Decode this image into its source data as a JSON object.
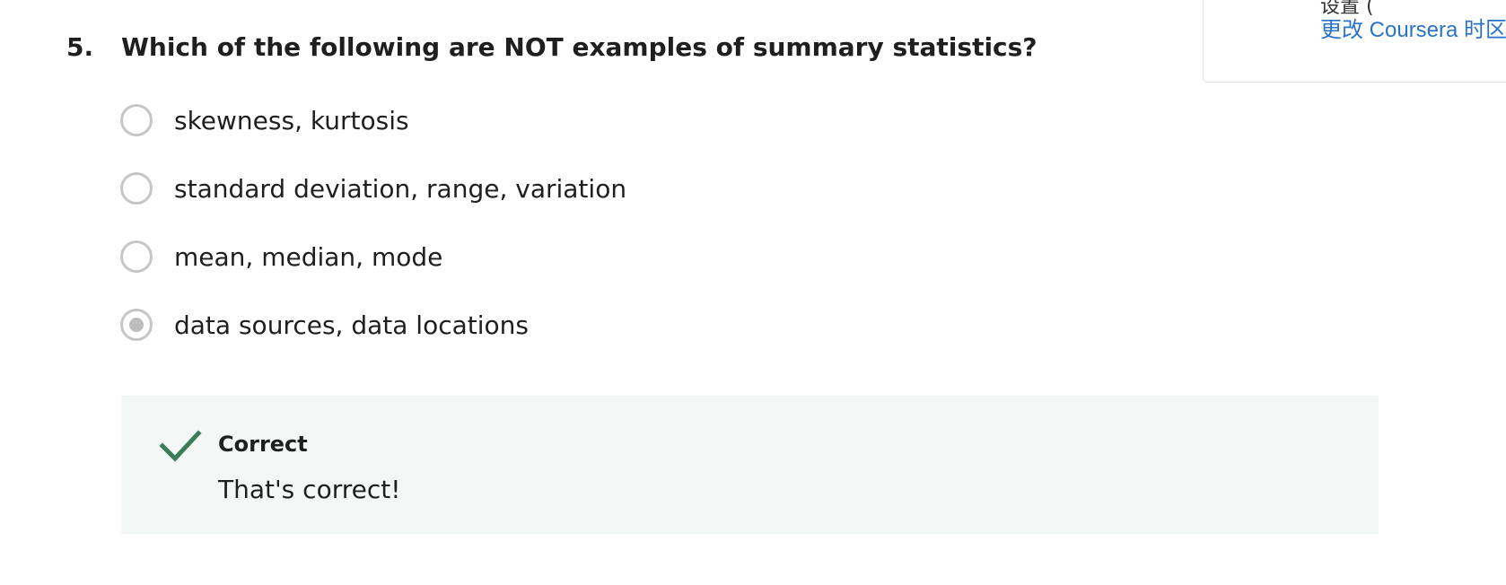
{
  "side_card": {
    "cut_text": "设置 (",
    "timezone_link": "更改 Coursera 时区"
  },
  "question": {
    "number": "5.",
    "text": "Which of the following are NOT examples of summary statistics?",
    "options": [
      {
        "label": "skewness, kurtosis",
        "selected": false
      },
      {
        "label": "standard deviation, range, variation",
        "selected": false
      },
      {
        "label": "mean, median, mode",
        "selected": false
      },
      {
        "label": "data sources, data locations",
        "selected": true
      }
    ]
  },
  "feedback": {
    "status": "Correct",
    "message": "That's correct!",
    "check_color": "#3b7d57",
    "background": "#f3f8f6"
  }
}
